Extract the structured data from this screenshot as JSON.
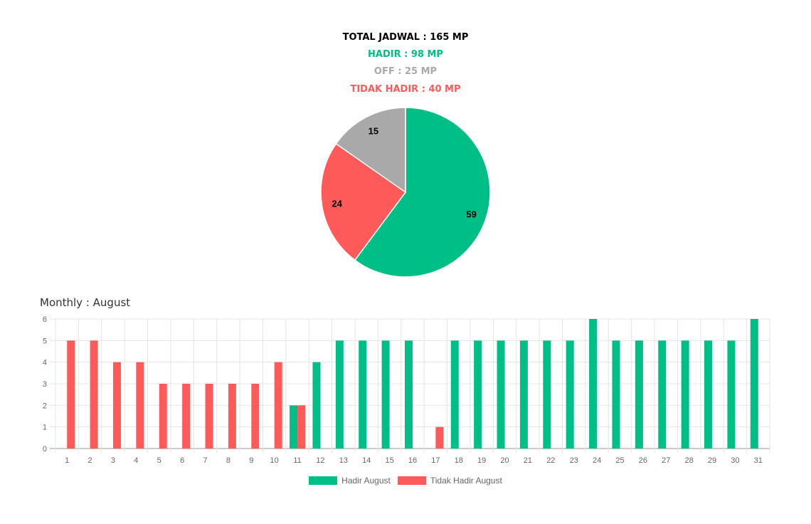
{
  "summary": {
    "total": "TOTAL JADWAL : 165 MP",
    "hadir": "HADIR : 98 MP",
    "off": "OFF : 25 MP",
    "tidak_hadir": "TIDAK HADIR : 40 MP"
  },
  "monthly_title": "Monthly : August",
  "colors": {
    "hadir": "#00bf86",
    "off": "#a9a9a9",
    "tidak": "#ff5a5a"
  },
  "legend": [
    {
      "label": "Hadir August",
      "color": "#00bf86"
    },
    {
      "label": "Tidak Hadir August",
      "color": "#ff5a5a"
    }
  ],
  "chart_data": [
    {
      "type": "pie",
      "slices": [
        {
          "value": 59,
          "color": "#00bf86"
        },
        {
          "value": 24,
          "color": "#ff5a5a"
        },
        {
          "value": 15,
          "color": "#a9a9a9"
        }
      ]
    },
    {
      "type": "bar",
      "categories": [
        "1",
        "2",
        "3",
        "4",
        "5",
        "6",
        "7",
        "8",
        "9",
        "10",
        "11",
        "12",
        "13",
        "14",
        "15",
        "16",
        "17",
        "18",
        "19",
        "20",
        "21",
        "22",
        "23",
        "24",
        "25",
        "26",
        "27",
        "28",
        "29",
        "30",
        "31"
      ],
      "series": [
        {
          "name": "Hadir August",
          "color": "#00bf86",
          "values": [
            0,
            0,
            0,
            0,
            0,
            0,
            0,
            0,
            0,
            0,
            2,
            4,
            5,
            5,
            5,
            5,
            0,
            5,
            5,
            5,
            5,
            5,
            5,
            6,
            5,
            5,
            5,
            5,
            5,
            5,
            6
          ]
        },
        {
          "name": "Tidak Hadir August",
          "color": "#ff5a5a",
          "values": [
            5,
            5,
            4,
            4,
            3,
            3,
            3,
            3,
            3,
            4,
            2,
            0,
            0,
            0,
            0,
            0,
            1,
            0,
            0,
            0,
            0,
            0,
            0,
            0,
            0,
            0,
            0,
            0,
            0,
            0,
            0
          ]
        }
      ],
      "ylim": [
        0,
        6
      ],
      "yticks": [
        0,
        1,
        2,
        3,
        4,
        5,
        6
      ],
      "grid": true,
      "legend_position": "bottom"
    }
  ]
}
